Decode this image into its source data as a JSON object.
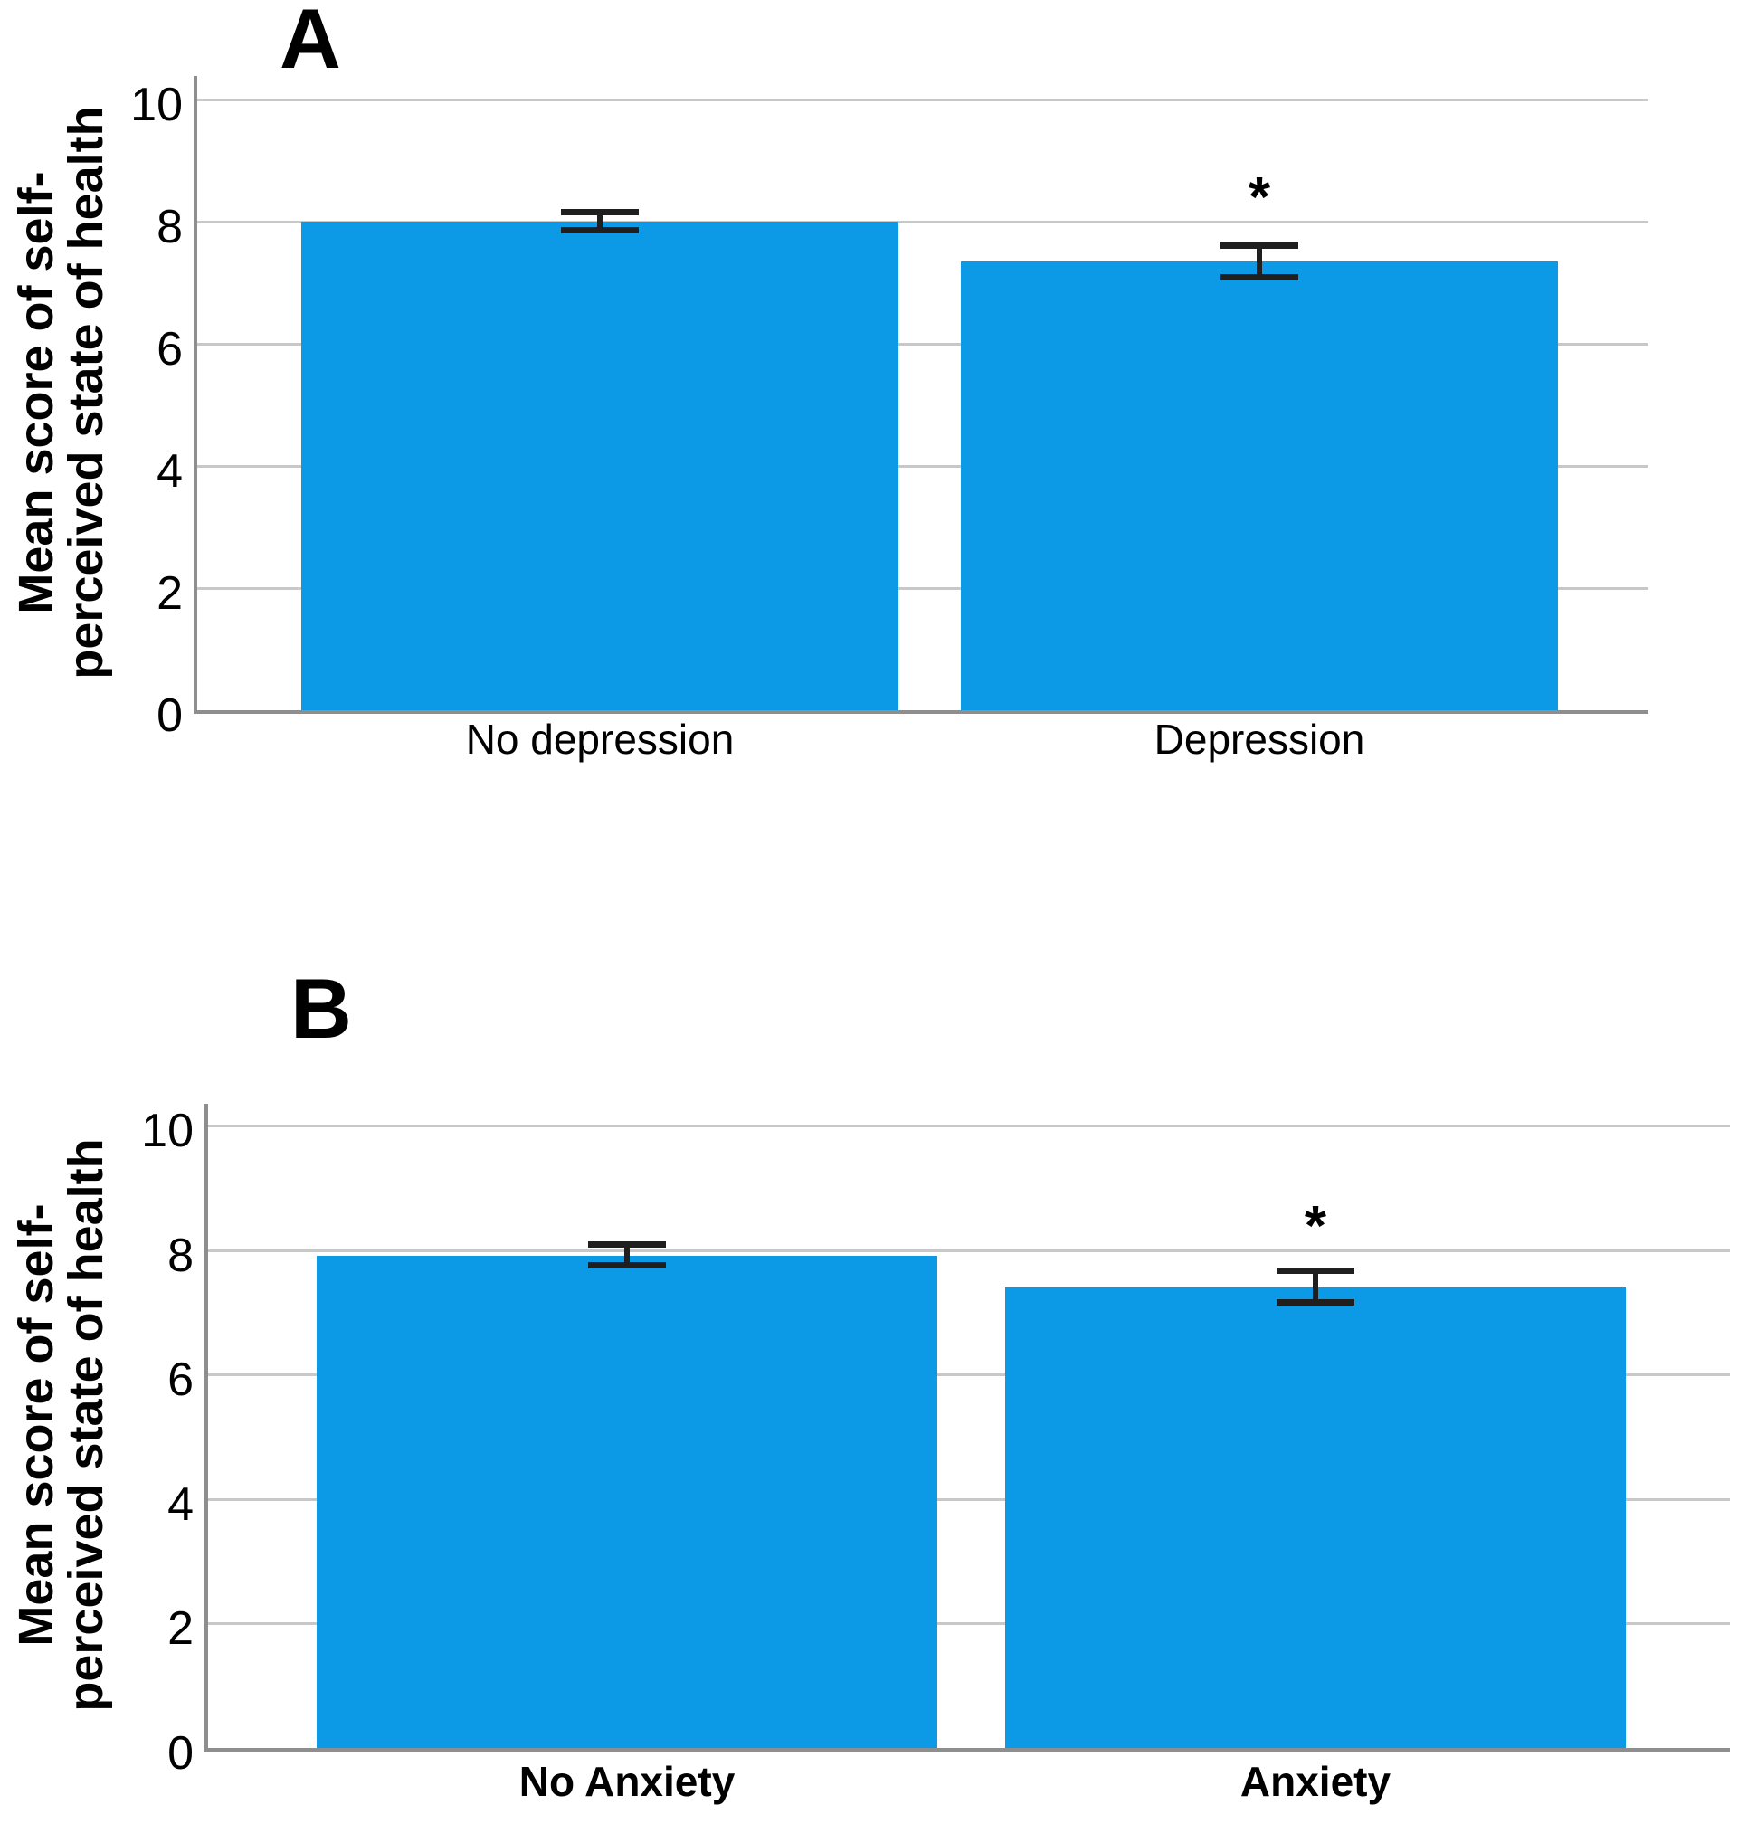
{
  "figure": {
    "background": "#ffffff",
    "y_axis_title": "Mean score of self-perceived state of health"
  },
  "colors": {
    "bar": "#0C99E6",
    "gridline": "#C8C8C8",
    "axis": "#8E8E8E",
    "error_bar": "#1F1F1F",
    "text": "#000000"
  },
  "chart_data": [
    {
      "type": "bar",
      "panel_label": "A",
      "ylabel_lines": [
        "Mean score of self-",
        "perceived state of health"
      ],
      "categories": [
        "No depression",
        "Depression"
      ],
      "values": [
        8.0,
        7.35
      ],
      "error_low": [
        7.85,
        7.08
      ],
      "error_high": [
        8.16,
        7.61
      ],
      "significance": [
        "",
        "*"
      ],
      "yticks": [
        0,
        2,
        4,
        6,
        8,
        10
      ],
      "ylim": [
        0,
        10
      ],
      "grid": true,
      "legend": "none",
      "xtick_bold": false
    },
    {
      "type": "bar",
      "panel_label": "B",
      "ylabel_lines": [
        "Mean score of self-",
        "perceived state of health"
      ],
      "categories": [
        "No Anxiety",
        "Anxiety"
      ],
      "values": [
        7.9,
        7.4
      ],
      "error_low": [
        7.75,
        7.15
      ],
      "error_high": [
        8.09,
        7.68
      ],
      "significance": [
        "",
        "*"
      ],
      "yticks": [
        0,
        2,
        4,
        6,
        8,
        10
      ],
      "ylim": [
        0,
        10
      ],
      "grid": true,
      "legend": "none",
      "xtick_bold": true
    }
  ]
}
